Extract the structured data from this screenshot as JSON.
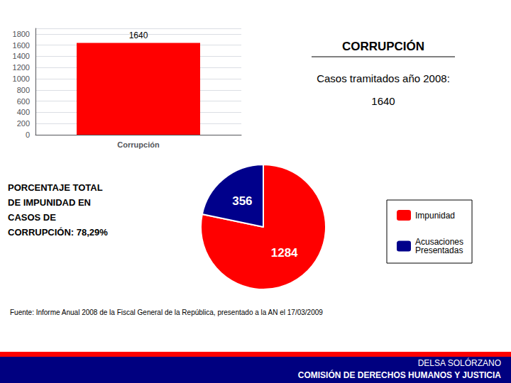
{
  "chart_data": [
    {
      "type": "bar",
      "categories": [
        "Corrupción"
      ],
      "values": [
        1640
      ],
      "color": "#FF0000",
      "ylim": [
        0,
        1900
      ],
      "yticks": [
        0,
        200,
        400,
        600,
        800,
        1000,
        1200,
        1400,
        1600,
        1800
      ],
      "grid": true,
      "data_labels": true,
      "annotations": [
        "CORRUPCIÓN",
        "Casos tramitados año 2008:",
        "1640"
      ]
    },
    {
      "type": "pie",
      "categories": [
        "Impunidad",
        "Acusaciones\nPresentadas"
      ],
      "values": [
        1284,
        356
      ],
      "colors": [
        "#FF0000",
        "#00008B"
      ],
      "data_labels": true,
      "legend": "right",
      "annotations": [
        "PORCENTAJE TOTAL",
        "DE IMPUNIDAD EN",
        "CASOS DE",
        "CORRUPCIÓN: 78,29%",
        "Fuente: Informe Anual 2008 de la Fiscal General de la República, presentado a la AN el 17/03/2009",
        "DELSA SOLÓRZANO",
        "COMISIÓN DE DERECHOS HUMANOS Y JUSTICIA"
      ]
    }
  ]
}
